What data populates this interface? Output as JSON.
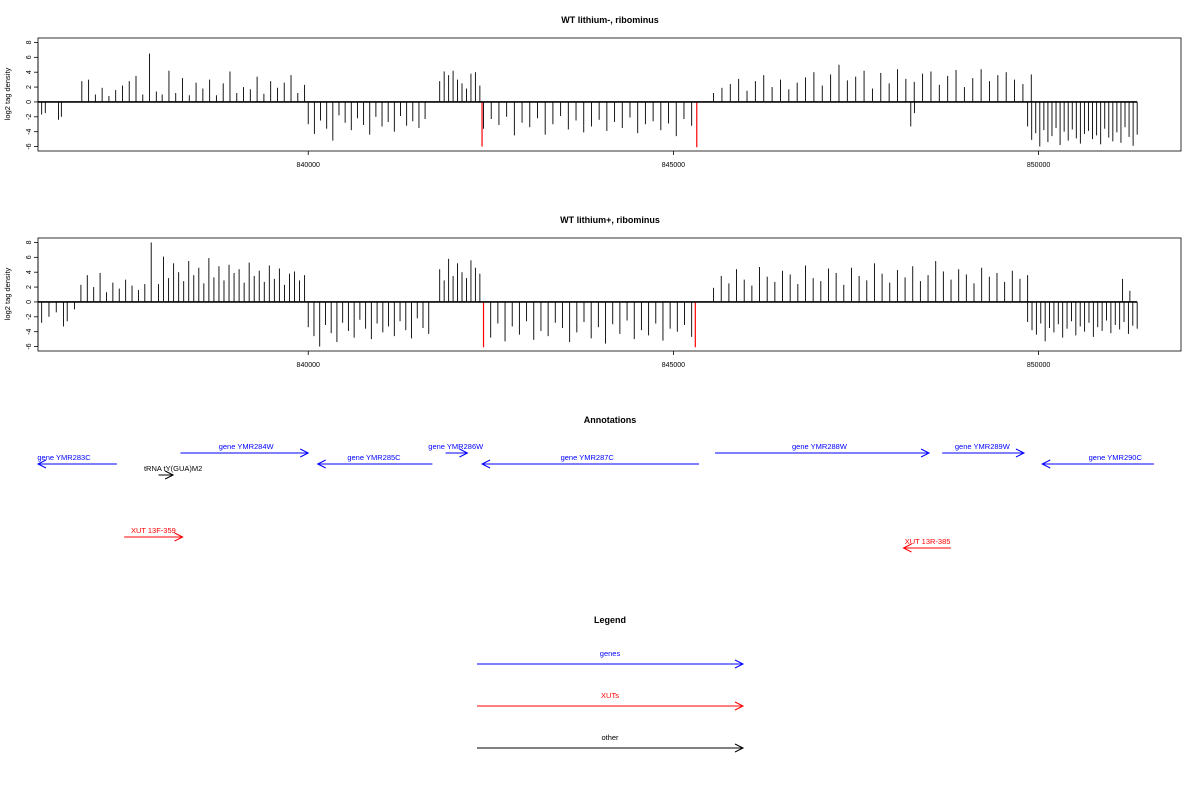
{
  "chart_data": [
    {
      "type": "bar",
      "title": "WT lithium-, ribominus",
      "ylabel": "log2 tag density",
      "xlim": [
        836300,
        851950
      ],
      "ylim": [
        -6.6,
        8.6
      ],
      "y_ticks": [
        -6,
        -4,
        -2,
        0,
        2,
        4,
        6,
        8
      ],
      "x_ticks": [
        840000,
        845000,
        850000
      ],
      "baseline": 0,
      "highlight_color": "#ff0000",
      "bar_color": "#000000",
      "highlights": [
        {
          "x": 842380,
          "value": -6.0
        },
        {
          "x": 845320,
          "value": -6.1
        }
      ],
      "segments": [
        {
          "x_start": 836350,
          "x_end": 836400,
          "values": [
            -1.7,
            -1.5
          ]
        },
        {
          "x_start": 836580,
          "x_end": 836620,
          "values": [
            -2.4,
            -2.0
          ]
        },
        {
          "x_start": 836900,
          "x_end": 837920,
          "values": [
            2.8,
            3.0,
            1.0,
            1.9,
            0.8,
            1.6,
            2.2,
            2.8,
            3.5,
            1.0,
            6.5,
            1.4
          ]
        },
        {
          "x_start": 838000,
          "x_end": 839950,
          "values": [
            1.0,
            4.2,
            1.2,
            3.2,
            0.9,
            2.6,
            1.8,
            3.0,
            0.9,
            2.5,
            4.1,
            1.2,
            2.0,
            1.7,
            3.4,
            1.1,
            2.8,
            1.9,
            2.6,
            3.6,
            1.2,
            2.3
          ]
        },
        {
          "x_start": 840000,
          "x_end": 841600,
          "values": [
            -3.0,
            -4.3,
            -2.5,
            -3.6,
            -5.2,
            -1.8,
            -2.8,
            -3.8,
            -2.2,
            -3.1,
            -4.4,
            -2.0,
            -3.3,
            -2.7,
            -4.0,
            -1.9,
            -3.2,
            -2.6,
            -3.5,
            -2.3
          ]
        },
        {
          "x_start": 841800,
          "x_end": 842350,
          "values": [
            2.8,
            4.1,
            3.6,
            4.2,
            3.0,
            2.5,
            1.8,
            3.8,
            4.0,
            2.2
          ]
        },
        {
          "x_start": 842400,
          "x_end": 845250,
          "values": [
            -3.6,
            -2.3,
            -3.1,
            -2.0,
            -4.5,
            -2.8,
            -3.4,
            -2.2,
            -4.4,
            -3.0,
            -1.9,
            -3.7,
            -2.5,
            -4.1,
            -3.3,
            -2.4,
            -3.9,
            -2.7,
            -3.5,
            -2.1,
            -4.2,
            -3.0,
            -2.6,
            -3.8,
            -2.9,
            -4.6,
            -2.3,
            -3.2
          ]
        },
        {
          "x_start": 845550,
          "x_end": 849900,
          "values": [
            1.2,
            1.9,
            2.4,
            3.1,
            1.5,
            2.8,
            3.6,
            2.0,
            3.0,
            1.7,
            2.6,
            3.3,
            4.0,
            2.2,
            3.7,
            5.0,
            2.9,
            3.4,
            4.2,
            1.8,
            3.9,
            2.5,
            4.4,
            3.1,
            2.7,
            3.8,
            4.1,
            2.3,
            3.5,
            4.3,
            2.0,
            3.2,
            4.4,
            2.8,
            3.6,
            4.0,
            3.0,
            2.4,
            3.7
          ]
        },
        {
          "x_start": 848250,
          "x_end": 848300,
          "values": [
            -3.3,
            -1.5
          ]
        },
        {
          "x_start": 849850,
          "x_end": 851350,
          "values": [
            -3.3,
            -5.1,
            -4.2,
            -6.0,
            -3.8,
            -5.4,
            -4.6,
            -3.5,
            -5.8,
            -4.0,
            -5.2,
            -3.7,
            -4.9,
            -5.6,
            -4.3,
            -3.9,
            -5.0,
            -4.5,
            -5.7,
            -3.6,
            -4.8,
            -5.3,
            -4.1,
            -5.5,
            -3.4,
            -4.7,
            -5.9,
            -4.4
          ]
        }
      ]
    },
    {
      "type": "bar",
      "title": "WT lithium+, ribominus",
      "ylabel": "log2 tag density",
      "xlim": [
        836300,
        851950
      ],
      "ylim": [
        -6.6,
        8.6
      ],
      "y_ticks": [
        -6,
        -4,
        -2,
        0,
        2,
        4,
        6,
        8
      ],
      "x_ticks": [
        840000,
        845000,
        850000
      ],
      "baseline": 0,
      "highlight_color": "#ff0000",
      "bar_color": "#000000",
      "highlights": [
        {
          "x": 842400,
          "value": -6.1
        },
        {
          "x": 845300,
          "value": -6.1
        }
      ],
      "segments": [
        {
          "x_start": 836350,
          "x_end": 836550,
          "values": [
            -2.8,
            -2.0,
            -1.4
          ]
        },
        {
          "x_start": 836650,
          "x_end": 836700,
          "values": [
            -3.3,
            -2.6
          ]
        },
        {
          "x_start": 836800,
          "x_end": 837850,
          "values": [
            -1.0,
            2.3,
            3.6,
            2.0,
            3.9,
            1.3,
            2.6,
            1.8,
            3.0,
            2.2,
            1.6,
            2.4,
            8.0
          ]
        },
        {
          "x_start": 837950,
          "x_end": 839950,
          "values": [
            2.4,
            6.1,
            3.2,
            5.2,
            4.0,
            2.8,
            5.5,
            3.6,
            4.6,
            2.5,
            5.9,
            3.3,
            4.8,
            2.9,
            5.0,
            3.9,
            4.4,
            2.6,
            5.3,
            3.5,
            4.2,
            2.7,
            4.9,
            3.1,
            4.5,
            2.3,
            3.8,
            4.1,
            2.9,
            3.6
          ]
        },
        {
          "x_start": 840000,
          "x_end": 841650,
          "values": [
            -3.4,
            -4.6,
            -6.0,
            -3.1,
            -4.2,
            -5.4,
            -2.8,
            -3.9,
            -4.8,
            -2.4,
            -3.6,
            -5.0,
            -2.9,
            -4.1,
            -3.3,
            -4.6,
            -2.6,
            -3.8,
            -4.9,
            -2.2,
            -3.5,
            -4.3
          ]
        },
        {
          "x_start": 841800,
          "x_end": 842350,
          "values": [
            4.4,
            2.9,
            5.8,
            3.5,
            5.2,
            4.0,
            3.2,
            5.6,
            4.6,
            3.8
          ]
        },
        {
          "x_start": 842400,
          "x_end": 845250,
          "values": [
            -3.6,
            -4.8,
            -2.9,
            -5.3,
            -3.3,
            -4.4,
            -2.6,
            -5.1,
            -3.9,
            -4.6,
            -2.8,
            -3.5,
            -5.4,
            -4.1,
            -2.7,
            -4.9,
            -3.4,
            -5.6,
            -3.0,
            -4.3,
            -2.5,
            -5.0,
            -3.8,
            -4.5,
            -2.9,
            -5.2,
            -3.6,
            -4.0,
            -3.1,
            -4.7
          ]
        },
        {
          "x_start": 845550,
          "x_end": 849850,
          "values": [
            1.9,
            3.5,
            2.5,
            4.4,
            3.0,
            2.2,
            4.7,
            3.4,
            2.7,
            4.2,
            3.7,
            2.4,
            4.9,
            3.2,
            2.8,
            4.5,
            3.9,
            2.3,
            4.6,
            3.5,
            2.9,
            5.2,
            3.8,
            2.6,
            4.3,
            3.3,
            4.8,
            2.8,
            3.6,
            5.5,
            4.1,
            3.0,
            4.4,
            3.7,
            2.5,
            4.6,
            3.4,
            3.9,
            2.7,
            4.2,
            3.1,
            3.6
          ]
        },
        {
          "x_start": 849850,
          "x_end": 851350,
          "values": [
            -2.7,
            -3.8,
            -4.4,
            -2.9,
            -5.3,
            -3.5,
            -4.1,
            -3.0,
            -4.8,
            -3.6,
            -2.6,
            -4.5,
            -3.3,
            -4.0,
            -2.8,
            -4.7,
            -3.4,
            -3.9,
            -2.5,
            -4.2,
            -3.1,
            -3.7,
            -2.7,
            -4.3,
            -3.2,
            -3.6
          ]
        },
        {
          "x_start": 851150,
          "x_end": 851250,
          "values": [
            3.1,
            1.5
          ]
        }
      ]
    }
  ],
  "annotations": {
    "title": "Annotations",
    "items": [
      {
        "label": "gene YMR283C",
        "kind": "gene",
        "dir": "left",
        "x_start": 836300,
        "x_end": 837380,
        "row": 1,
        "label_at": 836600
      },
      {
        "label": "tRNA tY(GUA)M2",
        "kind": "other",
        "dir": "right",
        "x_start": 837950,
        "x_end": 838150,
        "row": 2,
        "label_at": 838150
      },
      {
        "label": "gene YMR284W",
        "kind": "gene",
        "dir": "right",
        "x_start": 838250,
        "x_end": 840000,
        "row": 0,
        "label_at": 839150
      },
      {
        "label": "gene YMR285C",
        "kind": "gene",
        "dir": "left",
        "x_start": 840130,
        "x_end": 841700,
        "row": 1,
        "label_at": 840900
      },
      {
        "label": "gene YMR286W",
        "kind": "gene",
        "dir": "right",
        "x_start": 841880,
        "x_end": 842180,
        "row": 0,
        "label_at": 842020
      },
      {
        "label": "gene YMR287C",
        "kind": "gene",
        "dir": "left",
        "x_start": 842380,
        "x_end": 845350,
        "row": 1,
        "label_at": 843820
      },
      {
        "label": "gene YMR288W",
        "kind": "gene",
        "dir": "right",
        "x_start": 845570,
        "x_end": 848500,
        "row": 0,
        "label_at": 847000
      },
      {
        "label": "gene YMR289W",
        "kind": "gene",
        "dir": "right",
        "x_start": 848680,
        "x_end": 849800,
        "row": 0,
        "label_at": 849230
      },
      {
        "label": "gene YMR290C",
        "kind": "gene",
        "dir": "left",
        "x_start": 850050,
        "x_end": 851580,
        "row": 1,
        "label_at": 851050
      },
      {
        "label": "XUT 13F-359",
        "kind": "xut",
        "dir": "right",
        "x_start": 837480,
        "x_end": 838280,
        "row": 3,
        "label_at": 837880
      },
      {
        "label": "XUT 13R-385",
        "kind": "xut",
        "dir": "left",
        "x_start": 848150,
        "x_end": 848800,
        "row": 4,
        "label_at": 848480
      }
    ]
  },
  "legend": {
    "title": "Legend",
    "entries": [
      {
        "label": "genes",
        "kind": "gene"
      },
      {
        "label": "XUTs",
        "kind": "xut"
      },
      {
        "label": "other",
        "kind": "other"
      }
    ]
  },
  "colors": {
    "gene": "#0000ff",
    "xut": "#ff0000",
    "other": "#000000"
  }
}
